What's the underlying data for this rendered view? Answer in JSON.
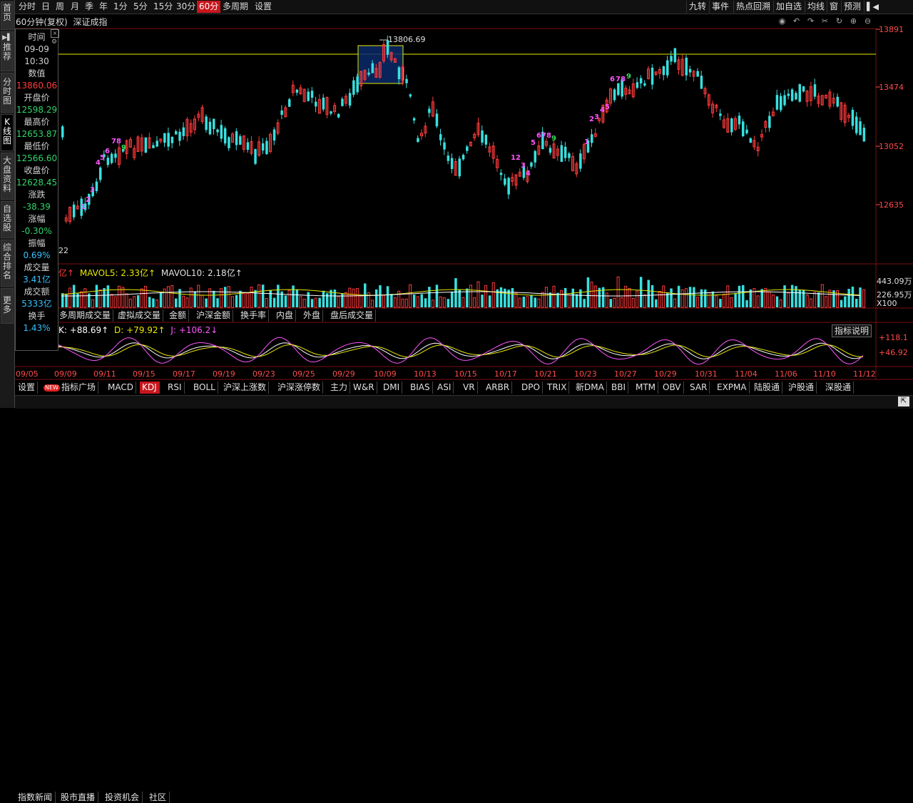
{
  "left_nav": [
    {
      "label": "首页",
      "active": false
    },
    {
      "label": "推荐",
      "active": false
    },
    {
      "label": "分时图",
      "active": false
    },
    {
      "label": "K线图",
      "active": true
    },
    {
      "label": "大盘资料",
      "active": false
    },
    {
      "label": "自选股",
      "active": false
    },
    {
      "label": "综合排名",
      "active": false
    },
    {
      "label": "更多",
      "active": false
    }
  ],
  "period_tabs": [
    "分时",
    "日",
    "周",
    "月",
    "季",
    "年",
    "1分",
    "5分",
    "15分",
    "30分",
    "60分",
    "多周期",
    "设置"
  ],
  "active_period": "60分",
  "right_tools": [
    "九转",
    "事件",
    "热点回溯",
    "加自选",
    "均线",
    "窗",
    "预测"
  ],
  "chart_header": {
    "period": "60分钟(复权)",
    "symbol": "深证成指"
  },
  "info_panel": {
    "time_label": "时间",
    "date": "09-09",
    "time": "10:30",
    "value_label": "数值",
    "value": "13860.06",
    "open_label": "开盘价",
    "open": "12598.29",
    "high_label": "最高价",
    "high": "12653.87",
    "low_label": "最低价",
    "low": "12566.60",
    "close_label": "收盘价",
    "close": "12628.45",
    "change_label": "涨跌",
    "change": "-38.39",
    "pct_label": "涨幅",
    "pct": "-0.30%",
    "amp_label": "振幅",
    "amp": "0.69%",
    "vol_label": "成交量",
    "vol": "3.41亿",
    "amt_label": "成交额",
    "amt": "5333亿",
    "turnover_label": "换手",
    "turnover": "1.43%"
  },
  "price_axis": [
    "13891",
    "13474",
    "13052",
    "12635"
  ],
  "max_annotation": "13806.69",
  "bottom_fragment": "22",
  "volume_header": {
    "left": "亿↑",
    "mavol5": "MAVOL5: 2.33亿↑",
    "mavol10": "MAVOL10: 2.18亿↑"
  },
  "volume_axis": [
    "443.09万",
    "226.95万",
    "X100"
  ],
  "sub_tabs": [
    "多周期成交量",
    "虚拟成交量",
    "金额",
    "沪深金额",
    "换手率",
    "内盘",
    "外盘",
    "盘后成交量"
  ],
  "kdj_header": {
    "k": "K: +88.69↑",
    "d": "D: +79.92↑",
    "j": "J: +106.2↓"
  },
  "indicator_button": "指标说明",
  "kdj_axis": [
    "+118.1",
    "+46.92"
  ],
  "x_dates": [
    "09/05",
    "09/09",
    "09/11",
    "09/15",
    "09/17",
    "09/19",
    "09/23",
    "09/25",
    "09/29",
    "10/09",
    "10/13",
    "10/15",
    "10/17",
    "10/21",
    "10/23",
    "10/27",
    "10/29",
    "10/31",
    "11/04",
    "11/06",
    "11/10",
    "11/12"
  ],
  "indicator_tabs": [
    "设置",
    "指标广场",
    "MACD",
    "KDJ",
    "RSI",
    "BOLL",
    "沪深上涨数",
    "沪深涨停数",
    "主力",
    "W&R",
    "DMI",
    "BIAS",
    "ASI",
    "VR",
    "ARBR",
    "DPO",
    "TRIX",
    "新DMA",
    "BBI",
    "MTM",
    "OBV",
    "SAR",
    "EXPMA",
    "陆股通",
    "沪股通",
    "深股通"
  ],
  "active_indicator": "KDJ",
  "new_badge": "NEW",
  "news_tabs": [
    "指数新闻",
    "股市直播",
    "投资机会",
    "社区"
  ],
  "td_sequences": [
    {
      "text": "1",
      "color": "#ff55ff"
    },
    {
      "text": "2",
      "color": "#ff55ff"
    },
    {
      "text": "3",
      "color": "#ff55ff"
    },
    {
      "text": "4",
      "color": "#ff55ff"
    },
    {
      "text": "5",
      "color": "#ff55ff"
    },
    {
      "text": "6",
      "color": "#ff55ff"
    },
    {
      "text": "7",
      "color": "#ff55ff"
    },
    {
      "text": "8",
      "color": "#ff55ff"
    },
    {
      "text": "9",
      "color": "#33dd55"
    },
    {
      "text": "1",
      "color": "#ff55ff"
    },
    {
      "text": "2",
      "color": "#ff55ff"
    },
    {
      "text": "3",
      "color": "#ff55ff"
    },
    {
      "text": "4",
      "color": "#ff55ff"
    },
    {
      "text": "5",
      "color": "#ff55ff"
    },
    {
      "text": "6",
      "color": "#ff55ff"
    },
    {
      "text": "7",
      "color": "#ff55ff"
    },
    {
      "text": "8",
      "color": "#ff55ff"
    },
    {
      "text": "9",
      "color": "#33dd55"
    },
    {
      "text": "1",
      "color": "#ff55ff"
    },
    {
      "text": "2",
      "color": "#ff55ff"
    },
    {
      "text": "3",
      "color": "#ff55ff"
    },
    {
      "text": "4",
      "color": "#ff55ff"
    },
    {
      "text": "5",
      "color": "#ff55ff"
    },
    {
      "text": "6",
      "color": "#ff55ff"
    },
    {
      "text": "7",
      "color": "#ff55ff"
    },
    {
      "text": "8",
      "color": "#ff55ff"
    },
    {
      "text": "9",
      "color": "#33dd55"
    }
  ],
  "colors": {
    "up": "#ff3b3b",
    "down": "#39e0e0",
    "accent": "#c8161d",
    "k_line": "#ffffff",
    "d_line": "#e8e800",
    "j_line": "#ff55ff"
  }
}
